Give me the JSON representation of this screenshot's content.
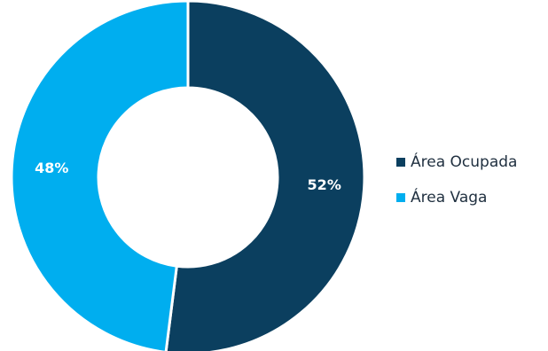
{
  "chart_data": {
    "type": "pie",
    "donut": true,
    "categories": [
      "Área Ocupada",
      "Área Vaga"
    ],
    "values": [
      52,
      48
    ],
    "labels": [
      "52%",
      "48%"
    ],
    "colors": [
      "#0b3f5f",
      "#00aeef"
    ],
    "legend": "right"
  }
}
